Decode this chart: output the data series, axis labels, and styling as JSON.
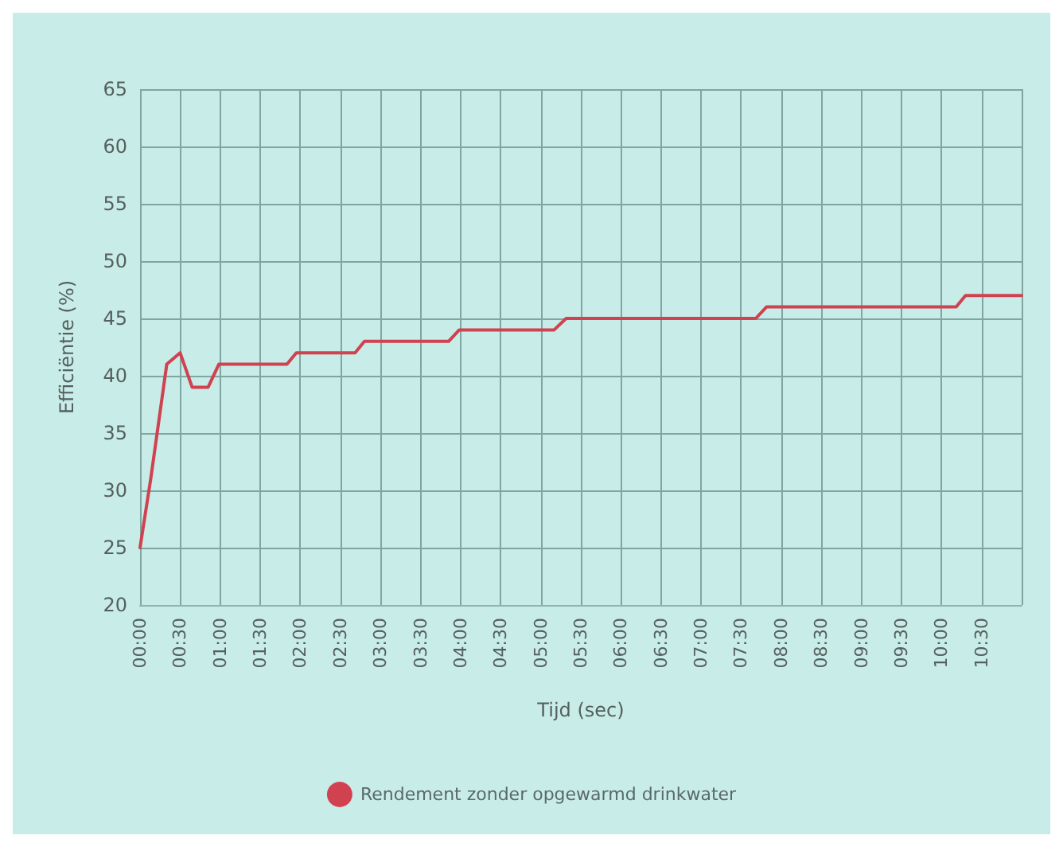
{
  "chart_data": {
    "type": "line",
    "xlabel": "Tijd (sec)",
    "ylabel": "Efficiëntie (%)",
    "x": [
      0,
      8,
      20,
      30,
      39,
      51,
      59,
      110,
      117,
      161,
      168,
      231,
      239,
      310,
      319,
      461,
      469,
      611,
      618,
      660
    ],
    "series": [
      {
        "name": "Rendement zonder opgewarmd drinkwater",
        "color": "#d0424f",
        "values": [
          25,
          31,
          41,
          42,
          39,
          39,
          41,
          41,
          42,
          42,
          43,
          43,
          44,
          44,
          45,
          45,
          46,
          46,
          47,
          47
        ]
      }
    ],
    "xlim": [
      0,
      660
    ],
    "xticks": [
      {
        "value": 0,
        "label": "00:00"
      },
      {
        "value": 30,
        "label": "00:30"
      },
      {
        "value": 60,
        "label": "01:00"
      },
      {
        "value": 90,
        "label": "01:30"
      },
      {
        "value": 120,
        "label": "02:00"
      },
      {
        "value": 150,
        "label": "02:30"
      },
      {
        "value": 180,
        "label": "03:00"
      },
      {
        "value": 210,
        "label": "03:30"
      },
      {
        "value": 240,
        "label": "04:00"
      },
      {
        "value": 270,
        "label": "04:30"
      },
      {
        "value": 300,
        "label": "05:00"
      },
      {
        "value": 330,
        "label": "05:30"
      },
      {
        "value": 360,
        "label": "06:00"
      },
      {
        "value": 390,
        "label": "06:30"
      },
      {
        "value": 420,
        "label": "07:00"
      },
      {
        "value": 450,
        "label": "07:30"
      },
      {
        "value": 480,
        "label": "08:00"
      },
      {
        "value": 510,
        "label": "08:30"
      },
      {
        "value": 540,
        "label": "09:00"
      },
      {
        "value": 570,
        "label": "09:30"
      },
      {
        "value": 600,
        "label": "10:00"
      },
      {
        "value": 630,
        "label": "10:30"
      },
      {
        "value": 660,
        "label": null
      }
    ],
    "ylim": [
      20,
      65
    ],
    "yticks": [
      20,
      25,
      30,
      35,
      40,
      45,
      50,
      55,
      60,
      65
    ],
    "grid": true,
    "legend": "bottom",
    "marker": "none",
    "line_style": "solid"
  }
}
